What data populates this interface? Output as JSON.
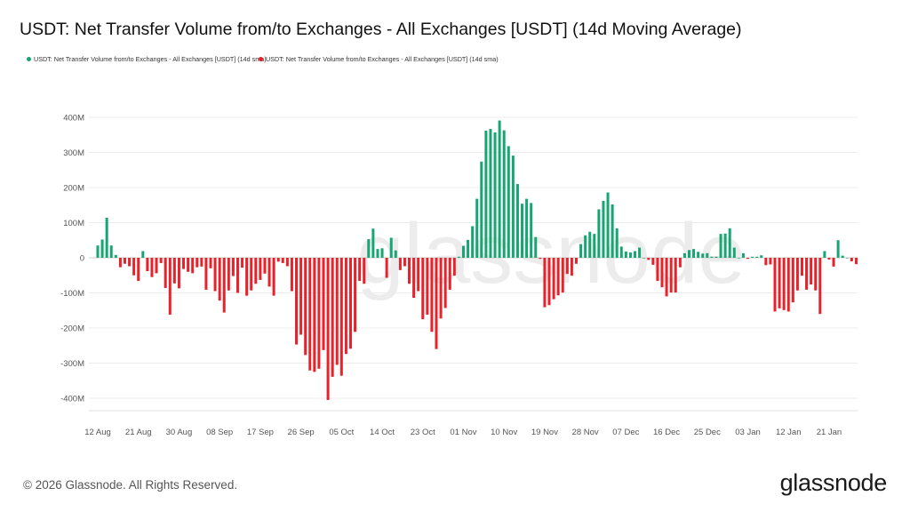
{
  "title": "USDT: Net Transfer Volume from/to Exchanges - All Exchanges [USDT] (14d Moving Average)",
  "legend": [
    {
      "label": "USDT: Net Transfer Volume from/to Exchanges - All Exchanges [USDT] (14d sma)",
      "color": "#17a673"
    },
    {
      "label": "USDT: Net Transfer Volume from/to Exchanges - All Exchanges [USDT] (14d sma)",
      "color": "#e8222a"
    }
  ],
  "watermark": "glassnode",
  "footer": {
    "copyright": "© 2026 Glassnode. All Rights Reserved.",
    "logo": "glassnode"
  },
  "chart_data": {
    "type": "bar",
    "title": "USDT: Net Transfer Volume from/to Exchanges - All Exchanges [USDT] (14d Moving Average)",
    "unit": "USDT (millions)",
    "positive_color": "#17a673",
    "negative_color": "#e8222a",
    "grid": true,
    "ylim": [
      -400,
      400
    ],
    "y_ticks": [
      400,
      300,
      200,
      100,
      0,
      -100,
      -200,
      -300,
      -400
    ],
    "y_tick_labels": [
      "400M",
      "300M",
      "200M",
      "100M",
      "0",
      "-100M",
      "-200M",
      "-300M",
      "-400M"
    ],
    "x_tick_labels": [
      "12 Aug",
      "21 Aug",
      "30 Aug",
      "08 Sep",
      "17 Sep",
      "26 Sep",
      "05 Oct",
      "14 Oct",
      "23 Oct",
      "01 Nov",
      "10 Nov",
      "19 Nov",
      "28 Nov",
      "07 Dec",
      "16 Dec",
      "25 Dec",
      "03 Jan",
      "12 Jan",
      "21 Jan"
    ],
    "x": [
      "12 Aug",
      "13 Aug",
      "14 Aug",
      "15 Aug",
      "16 Aug",
      "17 Aug",
      "18 Aug",
      "19 Aug",
      "20 Aug",
      "21 Aug",
      "22 Aug",
      "23 Aug",
      "24 Aug",
      "25 Aug",
      "26 Aug",
      "27 Aug",
      "28 Aug",
      "29 Aug",
      "30 Aug",
      "31 Aug",
      "01 Sep",
      "02 Sep",
      "03 Sep",
      "04 Sep",
      "05 Sep",
      "06 Sep",
      "07 Sep",
      "08 Sep",
      "09 Sep",
      "10 Sep",
      "11 Sep",
      "12 Sep",
      "13 Sep",
      "14 Sep",
      "15 Sep",
      "16 Sep",
      "17 Sep",
      "18 Sep",
      "19 Sep",
      "20 Sep",
      "21 Sep",
      "22 Sep",
      "23 Sep",
      "24 Sep",
      "25 Sep",
      "26 Sep",
      "27 Sep",
      "28 Sep",
      "29 Sep",
      "30 Sep",
      "01 Oct",
      "02 Oct",
      "03 Oct",
      "04 Oct",
      "05 Oct",
      "06 Oct",
      "07 Oct",
      "08 Oct",
      "09 Oct",
      "10 Oct",
      "11 Oct",
      "12 Oct",
      "13 Oct",
      "14 Oct",
      "15 Oct",
      "16 Oct",
      "17 Oct",
      "18 Oct",
      "19 Oct",
      "20 Oct",
      "21 Oct",
      "22 Oct",
      "23 Oct",
      "24 Oct",
      "25 Oct",
      "26 Oct",
      "27 Oct",
      "28 Oct",
      "29 Oct",
      "30 Oct",
      "31 Oct",
      "01 Nov",
      "02 Nov",
      "03 Nov",
      "04 Nov",
      "05 Nov",
      "06 Nov",
      "07 Nov",
      "08 Nov",
      "09 Nov",
      "10 Nov",
      "11 Nov",
      "12 Nov",
      "13 Nov",
      "14 Nov",
      "15 Nov",
      "16 Nov",
      "17 Nov",
      "18 Nov",
      "19 Nov",
      "20 Nov",
      "21 Nov",
      "22 Nov",
      "23 Nov",
      "24 Nov",
      "25 Nov",
      "26 Nov",
      "27 Nov",
      "28 Nov",
      "29 Nov",
      "30 Nov",
      "01 Dec",
      "02 Dec",
      "03 Dec",
      "04 Dec",
      "05 Dec",
      "06 Dec",
      "07 Dec",
      "08 Dec",
      "09 Dec",
      "10 Dec",
      "11 Dec",
      "12 Dec",
      "13 Dec",
      "14 Dec",
      "15 Dec",
      "16 Dec",
      "17 Dec",
      "18 Dec",
      "19 Dec",
      "20 Dec",
      "21 Dec",
      "22 Dec",
      "23 Dec",
      "24 Dec",
      "25 Dec",
      "26 Dec",
      "27 Dec",
      "28 Dec",
      "29 Dec",
      "30 Dec",
      "31 Dec",
      "01 Jan",
      "02 Jan",
      "03 Jan",
      "04 Jan",
      "05 Jan",
      "06 Jan",
      "07 Jan",
      "08 Jan",
      "09 Jan",
      "10 Jan",
      "11 Jan",
      "12 Jan",
      "13 Jan",
      "14 Jan",
      "15 Jan",
      "16 Jan",
      "17 Jan",
      "18 Jan",
      "19 Jan",
      "20 Jan",
      "21 Jan",
      "22 Jan",
      "23 Jan",
      "24 Jan",
      "25 Jan",
      "26 Jan",
      "27 Jan"
    ],
    "values": [
      35,
      52,
      114,
      35,
      8,
      -27,
      -17,
      -24,
      -50,
      -66,
      19,
      -38,
      -55,
      -44,
      -15,
      -86,
      -162,
      -73,
      -87,
      -32,
      -40,
      -44,
      -27,
      -25,
      -91,
      -30,
      -95,
      -122,
      -156,
      -93,
      -52,
      -100,
      -28,
      -108,
      -93,
      -74,
      -63,
      -45,
      -82,
      -108,
      -11,
      -15,
      -24,
      -95,
      -247,
      -219,
      -277,
      -321,
      -325,
      -316,
      -263,
      -405,
      -339,
      -305,
      -336,
      -274,
      -259,
      -211,
      -66,
      -74,
      53,
      83,
      25,
      27,
      -57,
      57,
      21,
      -35,
      -24,
      -74,
      -114,
      -95,
      -175,
      -162,
      -211,
      -260,
      -173,
      -143,
      -91,
      -51,
      3,
      34,
      51,
      90,
      168,
      274,
      362,
      367,
      357,
      391,
      363,
      318,
      291,
      210,
      154,
      168,
      156,
      59,
      -3,
      -141,
      -135,
      -118,
      -107,
      -99,
      -46,
      -51,
      -17,
      39,
      64,
      74,
      68,
      138,
      162,
      186,
      152,
      84,
      32,
      18,
      15,
      19,
      29,
      0,
      -6,
      -20,
      -66,
      -84,
      -110,
      -99,
      -99,
      -27,
      13,
      22,
      25,
      17,
      12,
      13,
      3,
      3,
      68,
      69,
      84,
      29,
      0,
      13,
      -3,
      3,
      3,
      7,
      -21,
      -19,
      -153,
      -144,
      -149,
      -153,
      -127,
      -93,
      -51,
      -91,
      -76,
      -93,
      -160,
      19,
      -5,
      -25,
      50,
      6,
      0,
      -10,
      -18
    ]
  }
}
